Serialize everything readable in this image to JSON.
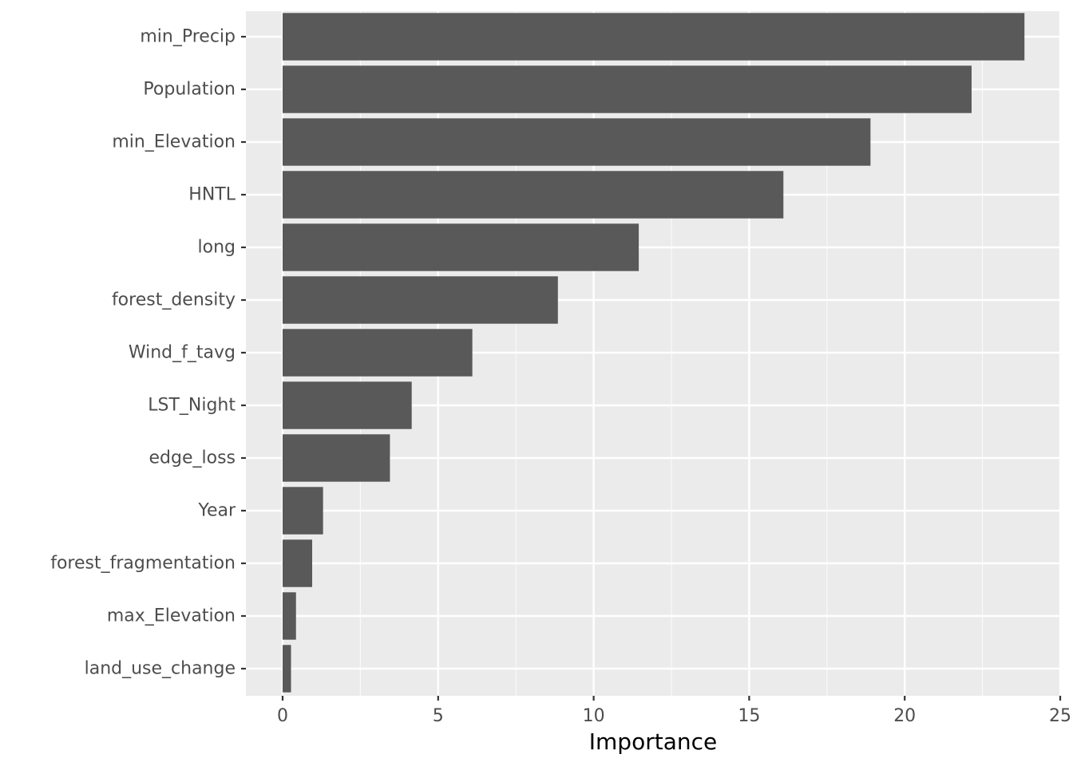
{
  "chart_data": {
    "type": "bar",
    "orientation": "horizontal",
    "xlabel": "Importance",
    "ylabel": "",
    "xlim": [
      -1.2,
      25
    ],
    "x_ticks": [
      0,
      5,
      10,
      15,
      20,
      25
    ],
    "grid": true,
    "categories": [
      "min_Precip",
      "Population",
      "min_Elevation",
      "HNTL",
      "long",
      "forest_density",
      "Wind_f_tavg",
      "LST_Night",
      "edge_loss",
      "Year",
      "forest_fragmentation",
      "max_Elevation",
      "land_use_change"
    ],
    "values": [
      23.85,
      22.15,
      18.9,
      16.1,
      11.45,
      8.85,
      6.1,
      4.15,
      3.45,
      1.3,
      0.95,
      0.43,
      0.27
    ],
    "colors": {
      "panel": "#ebebeb",
      "grid_major": "#ffffff",
      "bar": "#595959",
      "tick_text": "#4d4d4d",
      "tick_mark": "#333333"
    }
  }
}
